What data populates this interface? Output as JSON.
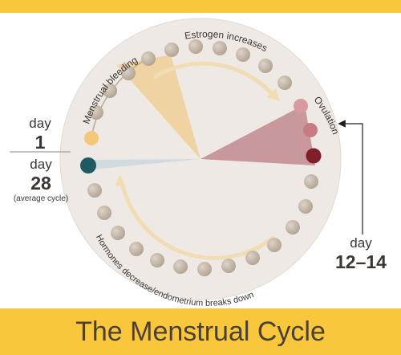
{
  "title": "The Menstrual Cycle",
  "phases": {
    "menstrual": "Menstrual bleeding",
    "estrogen": "Estrogen increases",
    "ovulation": "Ovulation",
    "hormones": "Hormones decrease/endometrium breaks down"
  },
  "markers": {
    "start": {
      "word": "day",
      "number": "1"
    },
    "end": {
      "word": "day",
      "number": "28",
      "note": "(average cycle)"
    },
    "ovulation": {
      "word": "day",
      "number": "12–14"
    }
  },
  "colors": {
    "banner": "#f9c73b",
    "disc": "#efe9e6",
    "bead": "#c4b6a6",
    "menstrual_wedge": "#f0d3a2",
    "ovulation_wedge": "#c9989c",
    "day28_wedge": "#cfdbdf",
    "day1_bead": "#f5c77a",
    "day28_bead": "#1f5a63",
    "ovulation_beads": [
      "#d89aa0",
      "#c87b83",
      "#7e1f2a"
    ],
    "arrow": "#f1dcb4"
  }
}
